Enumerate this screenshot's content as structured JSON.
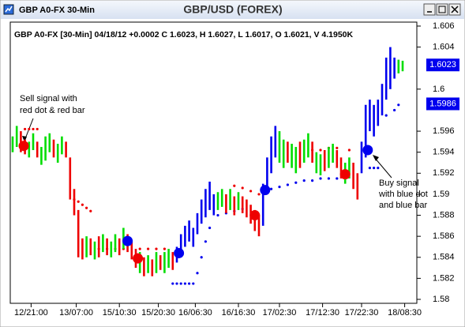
{
  "chart_data": {
    "type": "ohlc",
    "window_title": "GBP A0-FX 30-Min",
    "title": "GBP/USD (FOREX)",
    "info": "GBP A0-FX [30-Min] 04/18/12 +0.0002 C 1.6023, H 1.6027, L 1.6017, O 1.6021, V 4.1950K",
    "xlim": [
      0,
      196
    ],
    "xticks": [
      {
        "value": 9,
        "label": "12/21:00"
      },
      {
        "value": 31,
        "label": "13/07:00"
      },
      {
        "value": 52,
        "label": "15/10:30"
      },
      {
        "value": 71,
        "label": "15/20:30"
      },
      {
        "value": 89,
        "label": "16/06:30"
      },
      {
        "value": 110,
        "label": "16/16:30"
      },
      {
        "value": 130,
        "label": "17/02:30"
      },
      {
        "value": 151,
        "label": "17/12:30"
      },
      {
        "value": 170,
        "label": "17/22:30"
      },
      {
        "value": 191,
        "label": "18/08:30"
      }
    ],
    "ylim": [
      1.58,
      1.606
    ],
    "yticks": [
      1.606,
      1.604,
      1.6,
      1.596,
      1.594,
      1.592,
      1.59,
      1.588,
      1.586,
      1.584,
      1.582,
      1.58
    ],
    "series": [
      {
        "color": "#00dd00",
        "x": [
          0,
          2,
          8,
          10,
          14,
          16,
          18,
          22,
          24,
          36,
          40,
          44,
          48,
          50,
          54,
          62,
          66,
          70,
          74,
          76,
          100,
          102,
          106,
          110,
          130,
          132,
          136,
          138,
          142,
          144,
          148,
          150,
          154,
          156,
          162,
          164,
          188,
          190
        ],
        "high": [
          1.5955,
          1.5965,
          1.595,
          1.5958,
          1.5945,
          1.5955,
          1.5958,
          1.5948,
          1.5955,
          1.586,
          1.5855,
          1.5862,
          1.5855,
          1.5862,
          1.5868,
          1.5845,
          1.5842,
          1.5845,
          1.5845,
          1.5848,
          1.5902,
          1.5905,
          1.5905,
          1.5902,
          1.596,
          1.5952,
          1.5948,
          1.5945,
          1.5952,
          1.5958,
          1.594,
          1.5938,
          1.5945,
          1.5948,
          1.593,
          1.5935,
          1.6028,
          1.6027
        ],
        "low": [
          1.594,
          1.5945,
          1.5935,
          1.5942,
          1.5928,
          1.5932,
          1.594,
          1.593,
          1.5938,
          1.584,
          1.5838,
          1.5845,
          1.584,
          1.5845,
          1.5848,
          1.5825,
          1.5825,
          1.5825,
          1.5825,
          1.583,
          1.5885,
          1.5888,
          1.5885,
          1.5885,
          1.593,
          1.5925,
          1.5925,
          1.592,
          1.593,
          1.5935,
          1.592,
          1.5918,
          1.5925,
          1.593,
          1.591,
          1.5915,
          1.6015,
          1.6017
        ]
      },
      {
        "color": "#ee0000",
        "x": [
          4,
          6,
          12,
          20,
          26,
          28,
          30,
          32,
          34,
          38,
          42,
          46,
          52,
          56,
          58,
          60,
          64,
          68,
          72,
          78,
          104,
          108,
          112,
          114,
          116,
          118,
          120,
          134,
          140,
          146,
          152,
          158,
          160,
          166,
          168
        ],
        "high": [
          1.596,
          1.5952,
          1.595,
          1.5952,
          1.595,
          1.5935,
          1.5905,
          1.5885,
          1.5858,
          1.5858,
          1.586,
          1.5858,
          1.5858,
          1.5862,
          1.5855,
          1.5848,
          1.584,
          1.5838,
          1.5842,
          1.5845,
          1.59,
          1.5898,
          1.5898,
          1.5895,
          1.589,
          1.5885,
          1.588,
          1.595,
          1.595,
          1.595,
          1.5942,
          1.5942,
          1.5935,
          1.593,
          1.592
        ],
        "low": [
          1.594,
          1.5938,
          1.5935,
          1.5935,
          1.5935,
          1.5895,
          1.588,
          1.584,
          1.5838,
          1.5842,
          1.584,
          1.5842,
          1.5842,
          1.5845,
          1.5838,
          1.583,
          1.5822,
          1.5822,
          1.5828,
          1.5828,
          1.5882,
          1.588,
          1.5882,
          1.5878,
          1.5872,
          1.5865,
          1.586,
          1.593,
          1.5925,
          1.593,
          1.5922,
          1.5925,
          1.5915,
          1.5905,
          1.5895
        ]
      },
      {
        "color": "#0000ee",
        "x": [
          80,
          82,
          84,
          86,
          88,
          90,
          92,
          94,
          96,
          98,
          122,
          124,
          126,
          128,
          170,
          172,
          174,
          176,
          178,
          180,
          182,
          184,
          186
        ],
        "high": [
          1.585,
          1.5862,
          1.587,
          1.5875,
          1.5868,
          1.5882,
          1.5895,
          1.5905,
          1.5912,
          1.59,
          1.591,
          1.5935,
          1.5955,
          1.5965,
          1.595,
          1.5985,
          1.599,
          1.5985,
          1.599,
          1.6005,
          1.603,
          1.604,
          1.603
        ],
        "low": [
          1.5835,
          1.584,
          1.585,
          1.5855,
          1.585,
          1.5862,
          1.5872,
          1.5878,
          1.5885,
          1.588,
          1.587,
          1.59,
          1.592,
          1.5935,
          1.592,
          1.5935,
          1.596,
          1.5955,
          1.5965,
          1.5975,
          1.599,
          1.6,
          1.601
        ]
      }
    ],
    "stops": [
      {
        "color": "#ee0000",
        "x": [
          6,
          8,
          10,
          12,
          30,
          32,
          34,
          36,
          38,
          42,
          46,
          50,
          54,
          62,
          66,
          70,
          74,
          108,
          112,
          116,
          120,
          146,
          150,
          154,
          158,
          164
        ],
        "values": [
          1.5962,
          1.5962,
          1.5962,
          1.5962,
          1.5895,
          1.5893,
          1.589,
          1.5887,
          1.5884,
          1.5848,
          1.5848,
          1.5848,
          1.5848,
          1.5848,
          1.5848,
          1.5848,
          1.5848,
          1.5908,
          1.5906,
          1.5903,
          1.59,
          1.5942,
          1.5942,
          1.5944,
          1.5944,
          1.5942
        ]
      },
      {
        "color": "#0000ee",
        "x": [
          78,
          80,
          82,
          84,
          86,
          88,
          90,
          92,
          94,
          96,
          100,
          104,
          108,
          112,
          126,
          130,
          134,
          138,
          142,
          146,
          150,
          154,
          158,
          174,
          176,
          178,
          182,
          186,
          188
        ],
        "values": [
          1.5815,
          1.5815,
          1.5815,
          1.5815,
          1.5815,
          1.5815,
          1.5825,
          1.584,
          1.5855,
          1.5868,
          1.588,
          1.5882,
          1.5884,
          1.5886,
          1.5905,
          1.5907,
          1.5909,
          1.5911,
          1.5913,
          1.5913,
          1.5915,
          1.5915,
          1.5915,
          1.5925,
          1.5925,
          1.5925,
          1.5975,
          1.598,
          1.5985
        ]
      }
    ],
    "signals": [
      {
        "color": "#ee0000",
        "x": [
          5.4,
          61,
          118,
          162
        ],
        "values": [
          1.5946,
          1.5839,
          1.588,
          1.5919
        ]
      },
      {
        "color": "#0000ee",
        "x": [
          56,
          81,
          123,
          173
        ],
        "values": [
          1.58555,
          1.5844,
          1.5904,
          1.5942
        ]
      }
    ],
    "price_tags": [
      {
        "value": 1.6023,
        "color": "#0000ee"
      },
      {
        "value": 1.5986,
        "color": "#0000ee"
      }
    ],
    "annotations": [
      {
        "lines": [
          "Sell signal with",
          "red dot & red bar"
        ]
      },
      {
        "lines": [
          "Buy signal",
          "with blue dot",
          "and blue bar"
        ]
      }
    ]
  }
}
